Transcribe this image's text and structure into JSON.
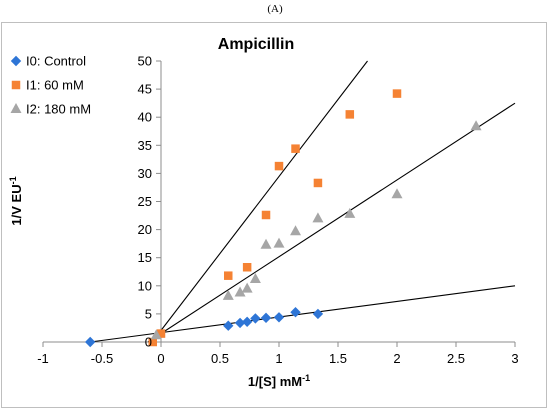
{
  "figure": {
    "panel_label": "(A)"
  },
  "chart_data": {
    "type": "scatter",
    "title": "Ampicillin",
    "xlabel": "1/[S] mM",
    "xlabel_sup": "-1",
    "ylabel": "1/V EU",
    "ylabel_sup": "-1",
    "xlim": [
      -1,
      3
    ],
    "ylim": [
      0,
      50
    ],
    "xticks": [
      -1,
      -0.5,
      0,
      0.5,
      1,
      1.5,
      2,
      2.5,
      3
    ],
    "xtick_labels": [
      "-1",
      "-0.5",
      "0",
      "0.5",
      "1",
      "1.5",
      "2",
      "2.5",
      "3"
    ],
    "yticks": [
      0,
      5,
      10,
      15,
      20,
      25,
      30,
      35,
      40,
      45,
      50
    ],
    "ytick_labels": [
      "0",
      "5",
      "10",
      "15",
      "20",
      "25",
      "30",
      "35",
      "40",
      "45",
      "50"
    ],
    "grid": false,
    "legend_position": "top-left",
    "series": [
      {
        "name": "I0: Control",
        "marker": "diamond",
        "color": "#2e75d6",
        "points": [
          [
            -0.6,
            0
          ],
          [
            0.57,
            2.9
          ],
          [
            0.67,
            3.4
          ],
          [
            0.73,
            3.6
          ],
          [
            0.8,
            4.2
          ],
          [
            0.89,
            4.3
          ],
          [
            1.0,
            4.4
          ],
          [
            1.14,
            5.3
          ],
          [
            1.33,
            5.0
          ]
        ]
      },
      {
        "name": "I1: 60 mM",
        "marker": "square",
        "color": "#f58233",
        "points": [
          [
            -0.07,
            0
          ],
          [
            0.0,
            1.5
          ],
          [
            0.57,
            11.8
          ],
          [
            0.73,
            13.3
          ],
          [
            0.89,
            22.6
          ],
          [
            1.0,
            31.3
          ],
          [
            1.14,
            34.4
          ],
          [
            1.33,
            28.3
          ],
          [
            1.6,
            40.5
          ],
          [
            2.0,
            44.2
          ]
        ]
      },
      {
        "name": "I2: 180 mM",
        "marker": "triangle",
        "color": "#a6a6a6",
        "points": [
          [
            -0.04,
            1.2
          ],
          [
            0.57,
            8.2
          ],
          [
            0.67,
            8.8
          ],
          [
            0.73,
            9.5
          ],
          [
            0.8,
            11.2
          ],
          [
            0.89,
            17.3
          ],
          [
            1.0,
            17.5
          ],
          [
            1.14,
            19.7
          ],
          [
            1.33,
            22.0
          ],
          [
            1.6,
            22.8
          ],
          [
            2.0,
            26.3
          ],
          [
            2.67,
            38.4
          ]
        ]
      }
    ],
    "trendlines": [
      {
        "series": "I0: Control",
        "color": "#000000",
        "from": [
          -0.6,
          0
        ],
        "to": [
          3,
          10
        ]
      },
      {
        "series": "I1: 60 mM",
        "color": "#000000",
        "from": [
          -0.075,
          0
        ],
        "to": [
          1.75,
          50
        ]
      },
      {
        "series": "I2: 180 mM",
        "color": "#000000",
        "from": [
          -0.11,
          0
        ],
        "to": [
          3,
          42.5
        ]
      }
    ]
  }
}
